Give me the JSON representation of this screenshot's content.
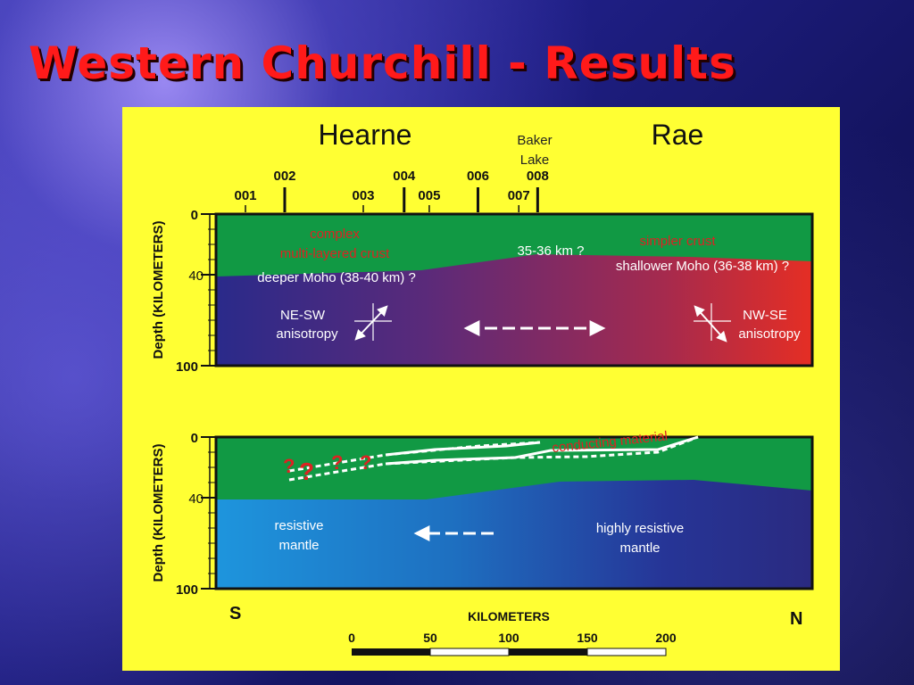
{
  "slide": {
    "title": "Western Churchill - Results"
  },
  "provinces": {
    "left": "Hearne",
    "right": "Rae",
    "center_line1": "Baker",
    "center_line2": "Lake"
  },
  "stations": [
    {
      "label": "001",
      "km": 0
    },
    {
      "label": "002",
      "km": 25
    },
    {
      "label": "003",
      "km": 75
    },
    {
      "label": "004",
      "km": 101
    },
    {
      "label": "005",
      "km": 117
    },
    {
      "label": "006",
      "km": 148
    },
    {
      "label": "007",
      "km": 174
    },
    {
      "label": "008",
      "km": 186
    }
  ],
  "top_section": {
    "axis_label": "Depth (KILOMETERS)",
    "ticks": [
      "0",
      "40",
      "100"
    ],
    "crust_left_line1": "complex",
    "crust_left_line2": "multi-layered crust",
    "moho_left": "deeper Moho (38-40 km) ?",
    "moho_center": "35-36 km ?",
    "crust_right": "simpler crust",
    "moho_right": "shallower  Moho (36-38 km) ?",
    "aniso_left_line1": "NE-SW",
    "aniso_left_line2": "anisotropy",
    "aniso_right_line1": "NW-SE",
    "aniso_right_line2": "anisotropy"
  },
  "bottom_section": {
    "axis_label": "Depth (KILOMETERS)",
    "ticks": [
      "0",
      "40",
      "100"
    ],
    "conductor_label": "conducting material",
    "question_marks": [
      "?",
      "?",
      "?",
      "?"
    ],
    "resistive_left_line1": "resistive",
    "resistive_left_line2": "mantle",
    "resistive_right_line1": "highly resistive",
    "resistive_right_line2": "mantle"
  },
  "orientation": {
    "south": "S",
    "north": "N"
  },
  "scale": {
    "label": "KILOMETERS",
    "ticks": [
      "0",
      "50",
      "100",
      "150",
      "200"
    ]
  },
  "colors": {
    "panel": "#ffff33",
    "crust": "#119944",
    "mantle_blue": "#2a2a8a",
    "mantle_red": "#e52e24",
    "resistive_light": "#1e95dd",
    "title": "#ff1a1a",
    "annotation_red": "#dd2222"
  }
}
